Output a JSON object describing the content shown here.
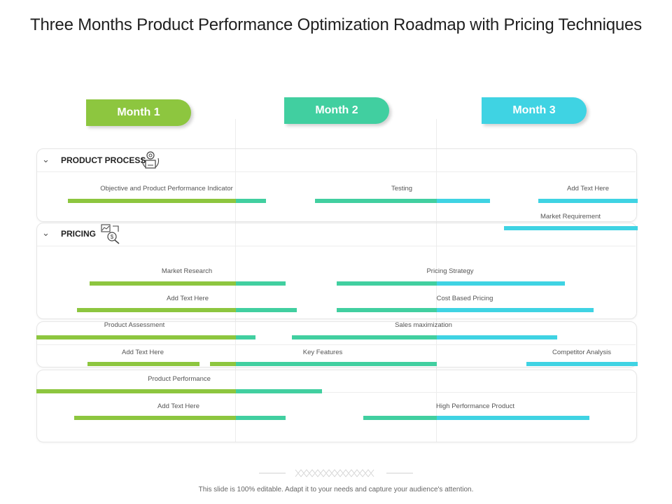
{
  "title": "Three Months Product Performance Optimization Roadmap with Pricing Techniques",
  "colors": {
    "green": "#8dc63f",
    "teal": "#41cfa0",
    "cyan": "#3fd3e3"
  },
  "months": [
    {
      "label": "Month 1",
      "color": "#8dc63f"
    },
    {
      "label": "Month 2",
      "color": "#41cfa0"
    },
    {
      "label": "Month 3",
      "color": "#3fd3e3"
    }
  ],
  "sections": [
    {
      "name": "PRODUCT PROCESS",
      "icon": "gear-box-icon"
    },
    {
      "name": "PRICING",
      "icon": "pricing-chart-icon"
    }
  ],
  "tasks": [
    {
      "label": "Objective and Product Performance Indicator"
    },
    {
      "label": "Testing"
    },
    {
      "label": "Add Text Here"
    },
    {
      "label": "Market Requirement"
    },
    {
      "label": "Market Research"
    },
    {
      "label": "Pricing Strategy"
    },
    {
      "label": "Add Text Here"
    },
    {
      "label": "Cost Based Pricing"
    },
    {
      "label": "Product Assessment"
    },
    {
      "label": "Sales maximization"
    },
    {
      "label": "Add Text Here"
    },
    {
      "label": "Key Features"
    },
    {
      "label": "Competitor Analysis"
    },
    {
      "label": "Product Performance"
    },
    {
      "label": "Add Text Here"
    },
    {
      "label": "High Performance Product"
    }
  ],
  "footer": "This slide is 100% editable. Adapt it to your needs and capture your audience's attention."
}
